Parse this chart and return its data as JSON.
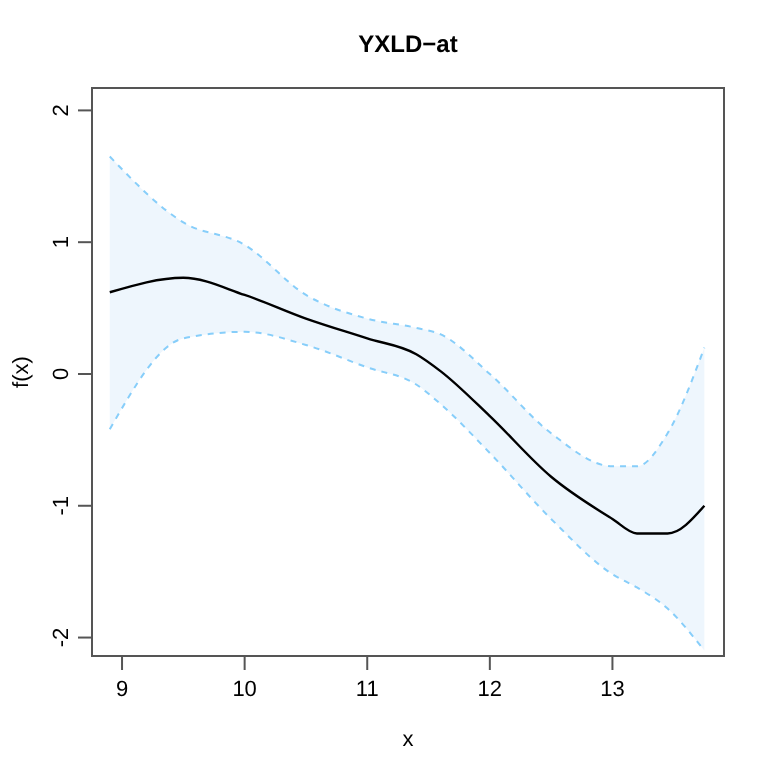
{
  "chart_data": {
    "type": "line",
    "title": "YXLD−at",
    "xlabel": "x",
    "ylabel": "f(x)",
    "xlim": [
      8.755,
      13.91
    ],
    "ylim": [
      -2.14,
      2.17
    ],
    "xticks": [
      9,
      10,
      11,
      12,
      13
    ],
    "yticks": [
      -2,
      -1,
      0,
      1,
      2
    ],
    "grid": false,
    "marker": "none",
    "line_style": "solid",
    "series": [
      {
        "color": "#000000",
        "x": [
          8.9,
          9.5,
          10,
          10.5,
          11,
          11.4,
          11.6,
          12,
          12.5,
          13,
          13.2,
          13.45,
          13.75
        ],
        "values": [
          0.62,
          0.73,
          0.6,
          0.42,
          0.27,
          0.15,
          0.02,
          -0.32,
          -0.78,
          -1.1,
          -1.21,
          -1.21,
          -1.0
        ],
        "lower": [
          -0.42,
          0.27,
          0.32,
          0.22,
          0.05,
          -0.08,
          -0.23,
          -0.6,
          -1.1,
          -1.52,
          -1.62,
          -1.78,
          -2.1
        ],
        "upper": [
          1.65,
          1.15,
          0.98,
          0.6,
          0.42,
          0.35,
          0.3,
          0,
          -0.45,
          -0.7,
          -0.7,
          -0.45,
          0.2
        ]
      },
      {
        "color": "#87cefa",
        "line_style": "dashed",
        "x": [
          8.9,
          9.5,
          10,
          10.5,
          11,
          11.4,
          11.6,
          12,
          12.5,
          13,
          13.2,
          13.45,
          13.75
        ],
        "values": [
          -0.42,
          0.27,
          0.32,
          0.22,
          0.05,
          -0.08,
          -0.23,
          -0.6,
          -1.1,
          -1.52,
          -1.62,
          -1.78,
          -2.1
        ]
      },
      {
        "color": "#87cefa",
        "line_style": "dashed",
        "x": [
          8.9,
          9.5,
          10,
          10.5,
          11,
          11.4,
          11.6,
          12,
          12.5,
          13,
          13.2,
          13.45,
          13.75
        ],
        "values": [
          1.65,
          1.15,
          0.98,
          0.6,
          0.42,
          0.35,
          0.3,
          0,
          -0.45,
          -0.7,
          -0.7,
          -0.45,
          0.2
        ]
      }
    ]
  }
}
